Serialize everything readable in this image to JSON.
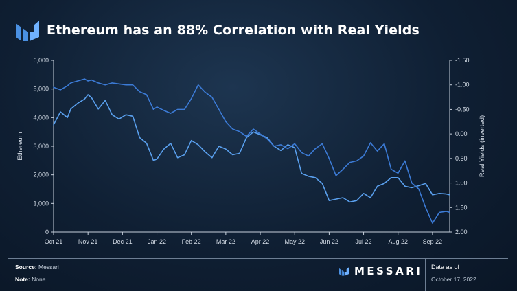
{
  "header": {
    "title": "Ethereum has an 88% Correlation with Real Yields"
  },
  "footer": {
    "source_label": "Source:",
    "source_value": "Messari",
    "note_label": "Note:",
    "note_value": "None",
    "brand": "MESSARI",
    "asof_label": "Data as of",
    "asof_date": "October 17, 2022"
  },
  "colors": {
    "eth_line": "#5aa0ee",
    "yield_line": "#3c7bd6",
    "background": "#0f1f33"
  },
  "chart_data": {
    "type": "line",
    "title": "Ethereum has an 88% Correlation with Real Yields",
    "xlabel": "",
    "ylabel": "Ethereum",
    "y2label": "Real Yields (inverted)",
    "ylim": [
      0,
      6000
    ],
    "y2lim": [
      -1.5,
      2.0
    ],
    "y2_inverted": true,
    "grid": false,
    "legend": "none",
    "x_ticks": [
      "Oct 21",
      "Nov 21",
      "Dec 21",
      "Jan 22",
      "Feb 22",
      "Mar 22",
      "Apr 22",
      "May 22",
      "Jun 22",
      "Jul 22",
      "Aug 22",
      "Sep 22"
    ],
    "y_ticks": [
      "0",
      "1,000",
      "2,000",
      "3,000",
      "4,000",
      "5,000",
      "6,000"
    ],
    "y2_ticks": [
      "-1.50",
      "-1.00",
      "-0.50",
      "0.00",
      "0.50",
      "1.00",
      "1.50",
      "2.00"
    ],
    "series": [
      {
        "axis": "left",
        "x": [
          0,
          0.2,
          0.4,
          0.5,
          0.7,
          0.9,
          1.0,
          1.1,
          1.3,
          1.5,
          1.7,
          1.9,
          2.1,
          2.3,
          2.5,
          2.7,
          2.9,
          3.0,
          3.2,
          3.4,
          3.6,
          3.8,
          4.0,
          4.2,
          4.4,
          4.6,
          4.8,
          5.0,
          5.2,
          5.4,
          5.6,
          5.8,
          6.0,
          6.2,
          6.4,
          6.6,
          6.8,
          7.0,
          7.2,
          7.4,
          7.6,
          7.8,
          8.0,
          8.2,
          8.4,
          8.6,
          8.8,
          9.0,
          9.2,
          9.4,
          9.6,
          9.8,
          10.0,
          10.2,
          10.4,
          10.6,
          10.8,
          11.0,
          11.2,
          11.4,
          11.5
        ],
        "values": [
          3750,
          4200,
          4000,
          4300,
          4500,
          4650,
          4800,
          4700,
          4300,
          4600,
          4100,
          3950,
          4100,
          4050,
          3300,
          3100,
          2500,
          2550,
          2900,
          3100,
          2600,
          2700,
          3200,
          3050,
          2800,
          2600,
          3000,
          2900,
          2700,
          2750,
          3300,
          3500,
          3400,
          3300,
          3000,
          2850,
          3050,
          2950,
          2050,
          1950,
          1900,
          1700,
          1100,
          1150,
          1200,
          1050,
          1100,
          1350,
          1200,
          1600,
          1700,
          1900,
          1900,
          1600,
          1550,
          1620,
          1700,
          1300,
          1350,
          1330,
          1300
        ]
      },
      {
        "axis": "right",
        "x": [
          0,
          0.2,
          0.4,
          0.5,
          0.7,
          0.9,
          1.0,
          1.1,
          1.3,
          1.5,
          1.7,
          1.9,
          2.1,
          2.3,
          2.5,
          2.7,
          2.9,
          3.0,
          3.2,
          3.4,
          3.6,
          3.8,
          4.0,
          4.2,
          4.4,
          4.6,
          4.8,
          5.0,
          5.2,
          5.4,
          5.6,
          5.8,
          6.0,
          6.2,
          6.4,
          6.6,
          6.8,
          7.0,
          7.2,
          7.4,
          7.6,
          7.8,
          8.0,
          8.2,
          8.4,
          8.6,
          8.8,
          9.0,
          9.2,
          9.4,
          9.6,
          9.8,
          10.0,
          10.2,
          10.4,
          10.6,
          10.8,
          11.0,
          11.2,
          11.4,
          11.5
        ],
        "values": [
          -0.95,
          -0.9,
          -0.98,
          -1.04,
          -1.08,
          -1.12,
          -1.08,
          -1.1,
          -1.04,
          -1.0,
          -1.04,
          -1.02,
          -1.0,
          -1.0,
          -0.86,
          -0.8,
          -0.5,
          -0.55,
          -0.48,
          -0.42,
          -0.5,
          -0.5,
          -0.72,
          -1.0,
          -0.85,
          -0.75,
          -0.5,
          -0.25,
          -0.1,
          -0.05,
          0.05,
          -0.1,
          0.0,
          0.1,
          0.25,
          0.22,
          0.3,
          0.2,
          0.38,
          0.45,
          0.3,
          0.2,
          0.5,
          0.85,
          0.72,
          0.58,
          0.55,
          0.45,
          0.18,
          0.35,
          0.2,
          0.72,
          0.8,
          0.55,
          1.0,
          1.12,
          1.5,
          1.82,
          1.6,
          1.58,
          1.6
        ]
      }
    ]
  }
}
